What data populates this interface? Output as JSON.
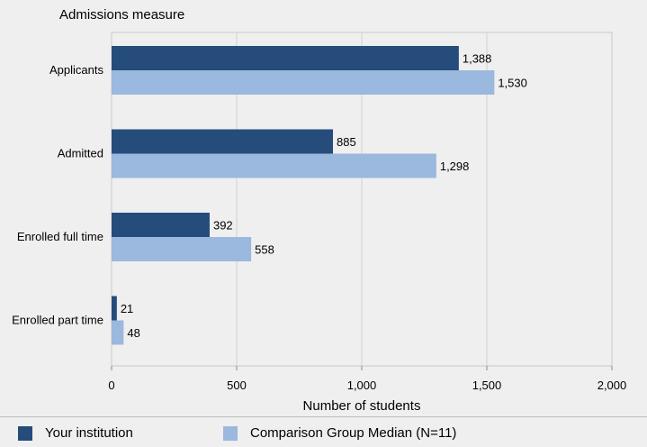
{
  "chart_data": {
    "type": "bar",
    "orientation": "horizontal",
    "title": "Admissions measure",
    "xlabel": "Number of students",
    "ylabel": "",
    "categories": [
      "Applicants",
      "Admitted",
      "Enrolled full time",
      "Enrolled part time"
    ],
    "series": [
      {
        "name": "Your institution",
        "values": [
          1388,
          885,
          392,
          21
        ],
        "labels": [
          "1,388",
          "885",
          "392",
          "21"
        ],
        "color": "#254c7a"
      },
      {
        "name": "Comparison Group Median (N=11)",
        "values": [
          1530,
          1298,
          558,
          48
        ],
        "labels": [
          "1,530",
          "1,298",
          "558",
          "48"
        ],
        "color": "#9bb8de"
      }
    ],
    "xlim": [
      0,
      2000
    ],
    "xticks": [
      0,
      500,
      1000,
      1500,
      2000
    ],
    "xtick_labels": [
      "0",
      "500",
      "1,000",
      "1,500",
      "2,000"
    ],
    "grid": true,
    "legend_position": "bottom"
  },
  "legend": {
    "items": [
      {
        "label": "Your institution",
        "color": "#254c7a"
      },
      {
        "label": "Comparison Group Median (N=11)",
        "color": "#9bb8de"
      }
    ]
  }
}
